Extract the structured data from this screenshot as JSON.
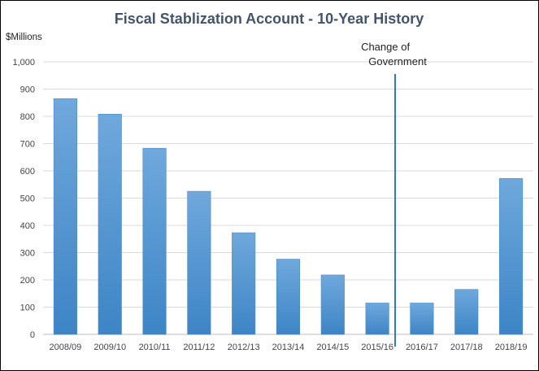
{
  "chart_data": {
    "type": "bar",
    "title": "Fiscal Stablization  Account - 10-Year History",
    "ylabel": "$Millions",
    "xlabel": "",
    "categories": [
      "2008/09",
      "2009/10",
      "2010/11",
      "2011/12",
      "2012/13",
      "2013/14",
      "2014/15",
      "2015/16",
      "2016/17",
      "2017/18",
      "2018/19"
    ],
    "values": [
      865,
      808,
      683,
      525,
      373,
      276,
      218,
      115,
      115,
      165,
      572
    ],
    "ylim": [
      0,
      1000
    ],
    "yticks": [
      0,
      100,
      200,
      300,
      400,
      500,
      600,
      700,
      800,
      900,
      1000
    ],
    "ytick_labels": [
      "0",
      "100",
      "200",
      "300",
      "400",
      "500",
      "600",
      "700",
      "800",
      "900",
      "1,000"
    ],
    "grid": true,
    "legend": "none",
    "bar_color": "#5b9bd5",
    "grid_color": "#d9d9d9",
    "annotation": {
      "line1": "Change of",
      "line2": "Government",
      "at_category": "2015/16",
      "line_color": "#2e75b6"
    }
  }
}
